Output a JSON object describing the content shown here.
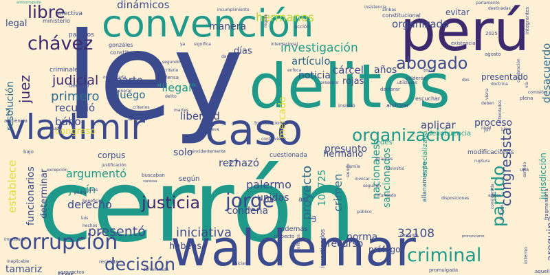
{
  "palette": {
    "background": "#fdf0d5",
    "navy": "#3b4a8c",
    "teal": "#1f9a8a",
    "purple": "#3d2a6e",
    "green": "#3cb371",
    "lime": "#b9d63a",
    "yellow": "#e2dd3a",
    "blue": "#2f6b8e"
  },
  "words": [
    {
      "t": "ley",
      "c": "navy"
    },
    {
      "t": "cerrón",
      "c": "teal"
    },
    {
      "t": "waldemar",
      "c": "navy"
    },
    {
      "t": "delitos",
      "c": "teal"
    },
    {
      "t": "convención",
      "c": "teal"
    },
    {
      "t": "perú",
      "c": "purple"
    },
    {
      "t": "caso",
      "c": "navy"
    },
    {
      "t": "vladimir",
      "c": "navy"
    },
    {
      "t": "corrupción",
      "c": "navy"
    },
    {
      "t": "organización",
      "c": "teal"
    },
    {
      "t": "jorge",
      "c": "navy"
    },
    {
      "t": "abogado",
      "c": "navy"
    },
    {
      "t": "criminal",
      "c": "teal"
    },
    {
      "t": "justicia",
      "c": "purple"
    },
    {
      "t": "chávez",
      "c": "purple"
    },
    {
      "t": "libre",
      "c": "purple"
    },
    {
      "t": "decisión",
      "c": "navy"
    },
    {
      "t": "presentó",
      "c": "navy"
    },
    {
      "t": "iniciativa",
      "c": "navy"
    },
    {
      "t": "partido",
      "c": "teal"
    },
    {
      "t": "congresista",
      "c": "navy"
    },
    {
      "t": "investigación",
      "c": "teal"
    },
    {
      "t": "judicial",
      "c": "purple"
    },
    {
      "t": "primero",
      "c": "blue"
    },
    {
      "t": "juez",
      "c": "purple"
    },
    {
      "t": "hermanos",
      "c": "lime"
    },
    {
      "t": "organizado",
      "c": "navy"
    },
    {
      "t": "dinámicos",
      "c": "navy"
    },
    {
      "t": "manera",
      "c": "navy"
    },
    {
      "t": "artículo",
      "c": "blue"
    },
    {
      "t": "días",
      "c": "navy"
    },
    {
      "t": "noticia",
      "c": "navy"
    },
    {
      "t": "cárcel",
      "c": "navy"
    },
    {
      "t": "años",
      "c": "navy"
    },
    {
      "t": "rojas",
      "c": "navy"
    },
    {
      "t": "parte",
      "c": "navy"
    },
    {
      "t": "\"ilegal\"",
      "c": "teal"
    },
    {
      "t": "recurrió",
      "c": "navy"
    },
    {
      "t": "luego",
      "c": "blue"
    },
    {
      "t": "libertad",
      "c": "navy"
    },
    {
      "t": "sino",
      "c": "navy"
    },
    {
      "t": "búho",
      "c": "navy"
    },
    {
      "t": "congreso",
      "c": "yellow"
    },
    {
      "t": "aplicar",
      "c": "navy"
    },
    {
      "t": "proceso",
      "c": "navy"
    },
    {
      "t": "rechazó",
      "c": "navy"
    },
    {
      "t": "solo",
      "c": "navy"
    },
    {
      "t": "establece",
      "c": "yellow"
    },
    {
      "t": "argumentó",
      "c": "teal"
    },
    {
      "t": "junín",
      "c": "teal"
    },
    {
      "t": "derecho",
      "c": "navy"
    },
    {
      "t": "palermo",
      "c": "navy"
    },
    {
      "t": "unidas",
      "c": "navy"
    },
    {
      "t": "condena",
      "c": "navy"
    },
    {
      "t": "proyecto",
      "c": "blue"
    },
    {
      "t": "crimen",
      "c": "blue"
    },
    {
      "t": "presunto",
      "c": "navy"
    },
    {
      "t": "norma",
      "c": "navy"
    },
    {
      "t": "32108",
      "c": "navy"
    },
    {
      "t": "recurso",
      "c": "navy"
    },
    {
      "t": "tamariz",
      "c": "navy"
    },
    {
      "t": "100725",
      "c": "teal"
    },
    {
      "t": "legal",
      "c": "navy"
    },
    {
      "t": "tres",
      "c": "navy"
    },
    {
      "t": "hermano",
      "c": "navy"
    },
    {
      "t": "prófugo",
      "c": "navy"
    },
    {
      "t": "arequipa",
      "c": "navy"
    },
    {
      "t": "desacuerdo",
      "c": "blue"
    },
    {
      "t": "resolución",
      "c": "blue"
    },
    {
      "t": "nacionales",
      "c": "teal"
    },
    {
      "t": "sancionados",
      "c": "teal"
    },
    {
      "t": "funcionarios",
      "c": "navy"
    },
    {
      "t": "determinar",
      "c": "navy"
    },
    {
      "t": "mercado",
      "c": "yellow"
    },
    {
      "t": "cuestionada",
      "c": "navy"
    },
    {
      "t": "habeas",
      "c": "navy"
    },
    {
      "t": "corpus",
      "c": "navy"
    },
    {
      "t": "evitar",
      "c": "navy"
    },
    {
      "t": "jurisdicción",
      "c": "teal"
    },
    {
      "t": "presentado",
      "c": "navy"
    },
    {
      "t": "allanamiento",
      "c": "blue"
    },
    {
      "t": "especializada",
      "c": "teal"
    },
    {
      "t": "delincuencia",
      "c": "teal"
    },
    {
      "t": "modificaciones",
      "c": "navy"
    },
    {
      "t": "redes",
      "c": "teal"
    },
    {
      "t": "según",
      "c": "navy"
    },
    {
      "t": "además",
      "c": "navy"
    },
    {
      "t": "así",
      "c": "navy"
    },
    {
      "t": "27",
      "c": "navy"
    },
    {
      "t": "3",
      "c": "navy"
    },
    {
      "t": "2",
      "c": "blue"
    },
    {
      "t": "efectiva",
      "c": "navy"
    },
    {
      "t": "ministerio",
      "c": "navy"
    },
    {
      "t": "partidos",
      "c": "navy"
    },
    {
      "t": "acción",
      "c": "navy"
    },
    {
      "t": "constitucional",
      "c": "navy"
    },
    {
      "t": "internacional",
      "c": "navy"
    },
    {
      "t": "gonzáles",
      "c": "navy"
    },
    {
      "t": "constituyen",
      "c": "navy"
    },
    {
      "t": "criminales",
      "c": "navy"
    },
    {
      "t": "declaró",
      "c": "navy"
    },
    {
      "t": "organizada",
      "c": "navy"
    },
    {
      "t": "defensa",
      "c": "navy"
    },
    {
      "t": "delito",
      "c": "navy"
    },
    {
      "t": "escuchar",
      "c": "navy"
    },
    {
      "t": "archivar",
      "c": "navy"
    },
    {
      "t": "insistió",
      "c": "navy"
    },
    {
      "t": "mila",
      "c": "navy"
    },
    {
      "t": "calderón",
      "c": "navy"
    },
    {
      "t": "declarar",
      "c": "navy"
    },
    {
      "t": "agosto",
      "c": "navy"
    },
    {
      "t": "2025",
      "c": "navy"
    },
    {
      "t": "existencia",
      "c": "navy"
    },
    {
      "t": "integrantes",
      "c": "navy"
    },
    {
      "t": "plena",
      "c": "navy"
    },
    {
      "t": "audiencia",
      "c": "navy"
    },
    {
      "t": "criterios",
      "c": "navy"
    },
    {
      "t": "martes",
      "c": "navy"
    },
    {
      "t": "contraviene",
      "c": "navy"
    },
    {
      "t": "transacciones",
      "c": "navy"
    },
    {
      "t": "jul",
      "c": "navy"
    },
    {
      "t": "solicitud",
      "c": "navy"
    },
    {
      "t": "bajo",
      "c": "navy"
    },
    {
      "t": "excepción",
      "c": "navy"
    },
    {
      "t": "justificación",
      "c": "navy"
    },
    {
      "t": "buscaban",
      "c": "navy"
    },
    {
      "t": "vanessa",
      "c": "navy"
    },
    {
      "t": "beneficios",
      "c": "navy"
    },
    {
      "t": "luis",
      "c": "navy"
    },
    {
      "t": "hechos",
      "c": "navy"
    },
    {
      "t": "respecto",
      "c": "navy"
    },
    {
      "t": "obstante",
      "c": "navy"
    },
    {
      "t": "público",
      "c": "navy"
    },
    {
      "t": "invocar",
      "c": "navy"
    },
    {
      "t": "seguirán",
      "c": "navy"
    },
    {
      "t": "disposiciones",
      "c": "navy"
    },
    {
      "t": "infundado",
      "c": "navy"
    },
    {
      "t": "convirtió",
      "c": "navy"
    },
    {
      "t": "ruptura",
      "c": "navy"
    },
    {
      "t": "camila",
      "c": "navy"
    },
    {
      "t": "alcances",
      "c": "navy"
    },
    {
      "t": "arturo",
      "c": "navy"
    },
    {
      "t": "tratado",
      "c": "navy"
    },
    {
      "t": "pronunciarse",
      "c": "navy"
    },
    {
      "t": "interno",
      "c": "navy"
    },
    {
      "t": "aquellas",
      "c": "navy"
    },
    {
      "t": "promulgada",
      "c": "navy"
    },
    {
      "t": "proyectos",
      "c": "navy"
    },
    {
      "t": "reciente",
      "c": "navy"
    },
    {
      "t": "denominada",
      "c": "navy"
    },
    {
      "t": "inaplicable",
      "c": "navy"
    },
    {
      "t": "impulsada",
      "c": "navy"
    },
    {
      "t": "iniciar",
      "c": "navy"
    },
    {
      "t": "investigados",
      "c": "navy"
    },
    {
      "t": "políticos",
      "c": "navy"
    },
    {
      "t": "anticorrupción",
      "c": "teal"
    },
    {
      "t": "incumplimiento",
      "c": "navy"
    },
    {
      "t": "insistencia",
      "c": "navy"
    },
    {
      "t": "ambas",
      "c": "navy"
    },
    {
      "t": "parlamento",
      "c": "navy"
    },
    {
      "t": "destinadas",
      "c": "navy"
    },
    {
      "t": "darse",
      "c": "navy"
    },
    {
      "t": "segundo",
      "c": "navy"
    },
    {
      "t": "criterio",
      "c": "navy"
    },
    {
      "t": "generar",
      "c": "navy"
    },
    {
      "t": "utilizados",
      "c": "navy"
    },
    {
      "t": "significa",
      "c": "navy"
    },
    {
      "t": "regula",
      "c": "navy"
    },
    {
      "t": "enfoca",
      "c": "navy"
    },
    {
      "t": "presente",
      "c": "navy"
    },
    {
      "t": "viena",
      "c": "navy"
    },
    {
      "t": "actividades",
      "c": "navy"
    },
    {
      "t": "nivel",
      "c": "navy"
    },
    {
      "t": "dos",
      "c": "navy"
    },
    {
      "t": "celebración",
      "c": "navy"
    },
    {
      "t": "vía",
      "c": "navy"
    },
    {
      "t": "deben",
      "c": "navy"
    },
    {
      "t": "doctrina",
      "c": "navy"
    },
    {
      "t": "sentido",
      "c": "navy"
    },
    {
      "t": "comisión",
      "c": "navy"
    },
    {
      "t": "una",
      "c": "navy"
    },
    {
      "t": "12",
      "c": "navy"
    },
    {
      "t": "nueva",
      "c": "navy"
    },
    {
      "t": "lima",
      "c": "navy"
    },
    {
      "t": "siendo",
      "c": "navy"
    },
    {
      "t": "considerada",
      "c": "navy"
    },
    {
      "t": "fragmentaria",
      "c": "navy"
    },
    {
      "t": "coincidentemente",
      "c": "navy"
    },
    {
      "t": "podrá",
      "c": "navy"
    },
    {
      "t": "ya",
      "c": "navy"
    },
    {
      "t": "pues",
      "c": "navy"
    },
    {
      "t": "concluido",
      "c": "navy"
    }
  ]
}
